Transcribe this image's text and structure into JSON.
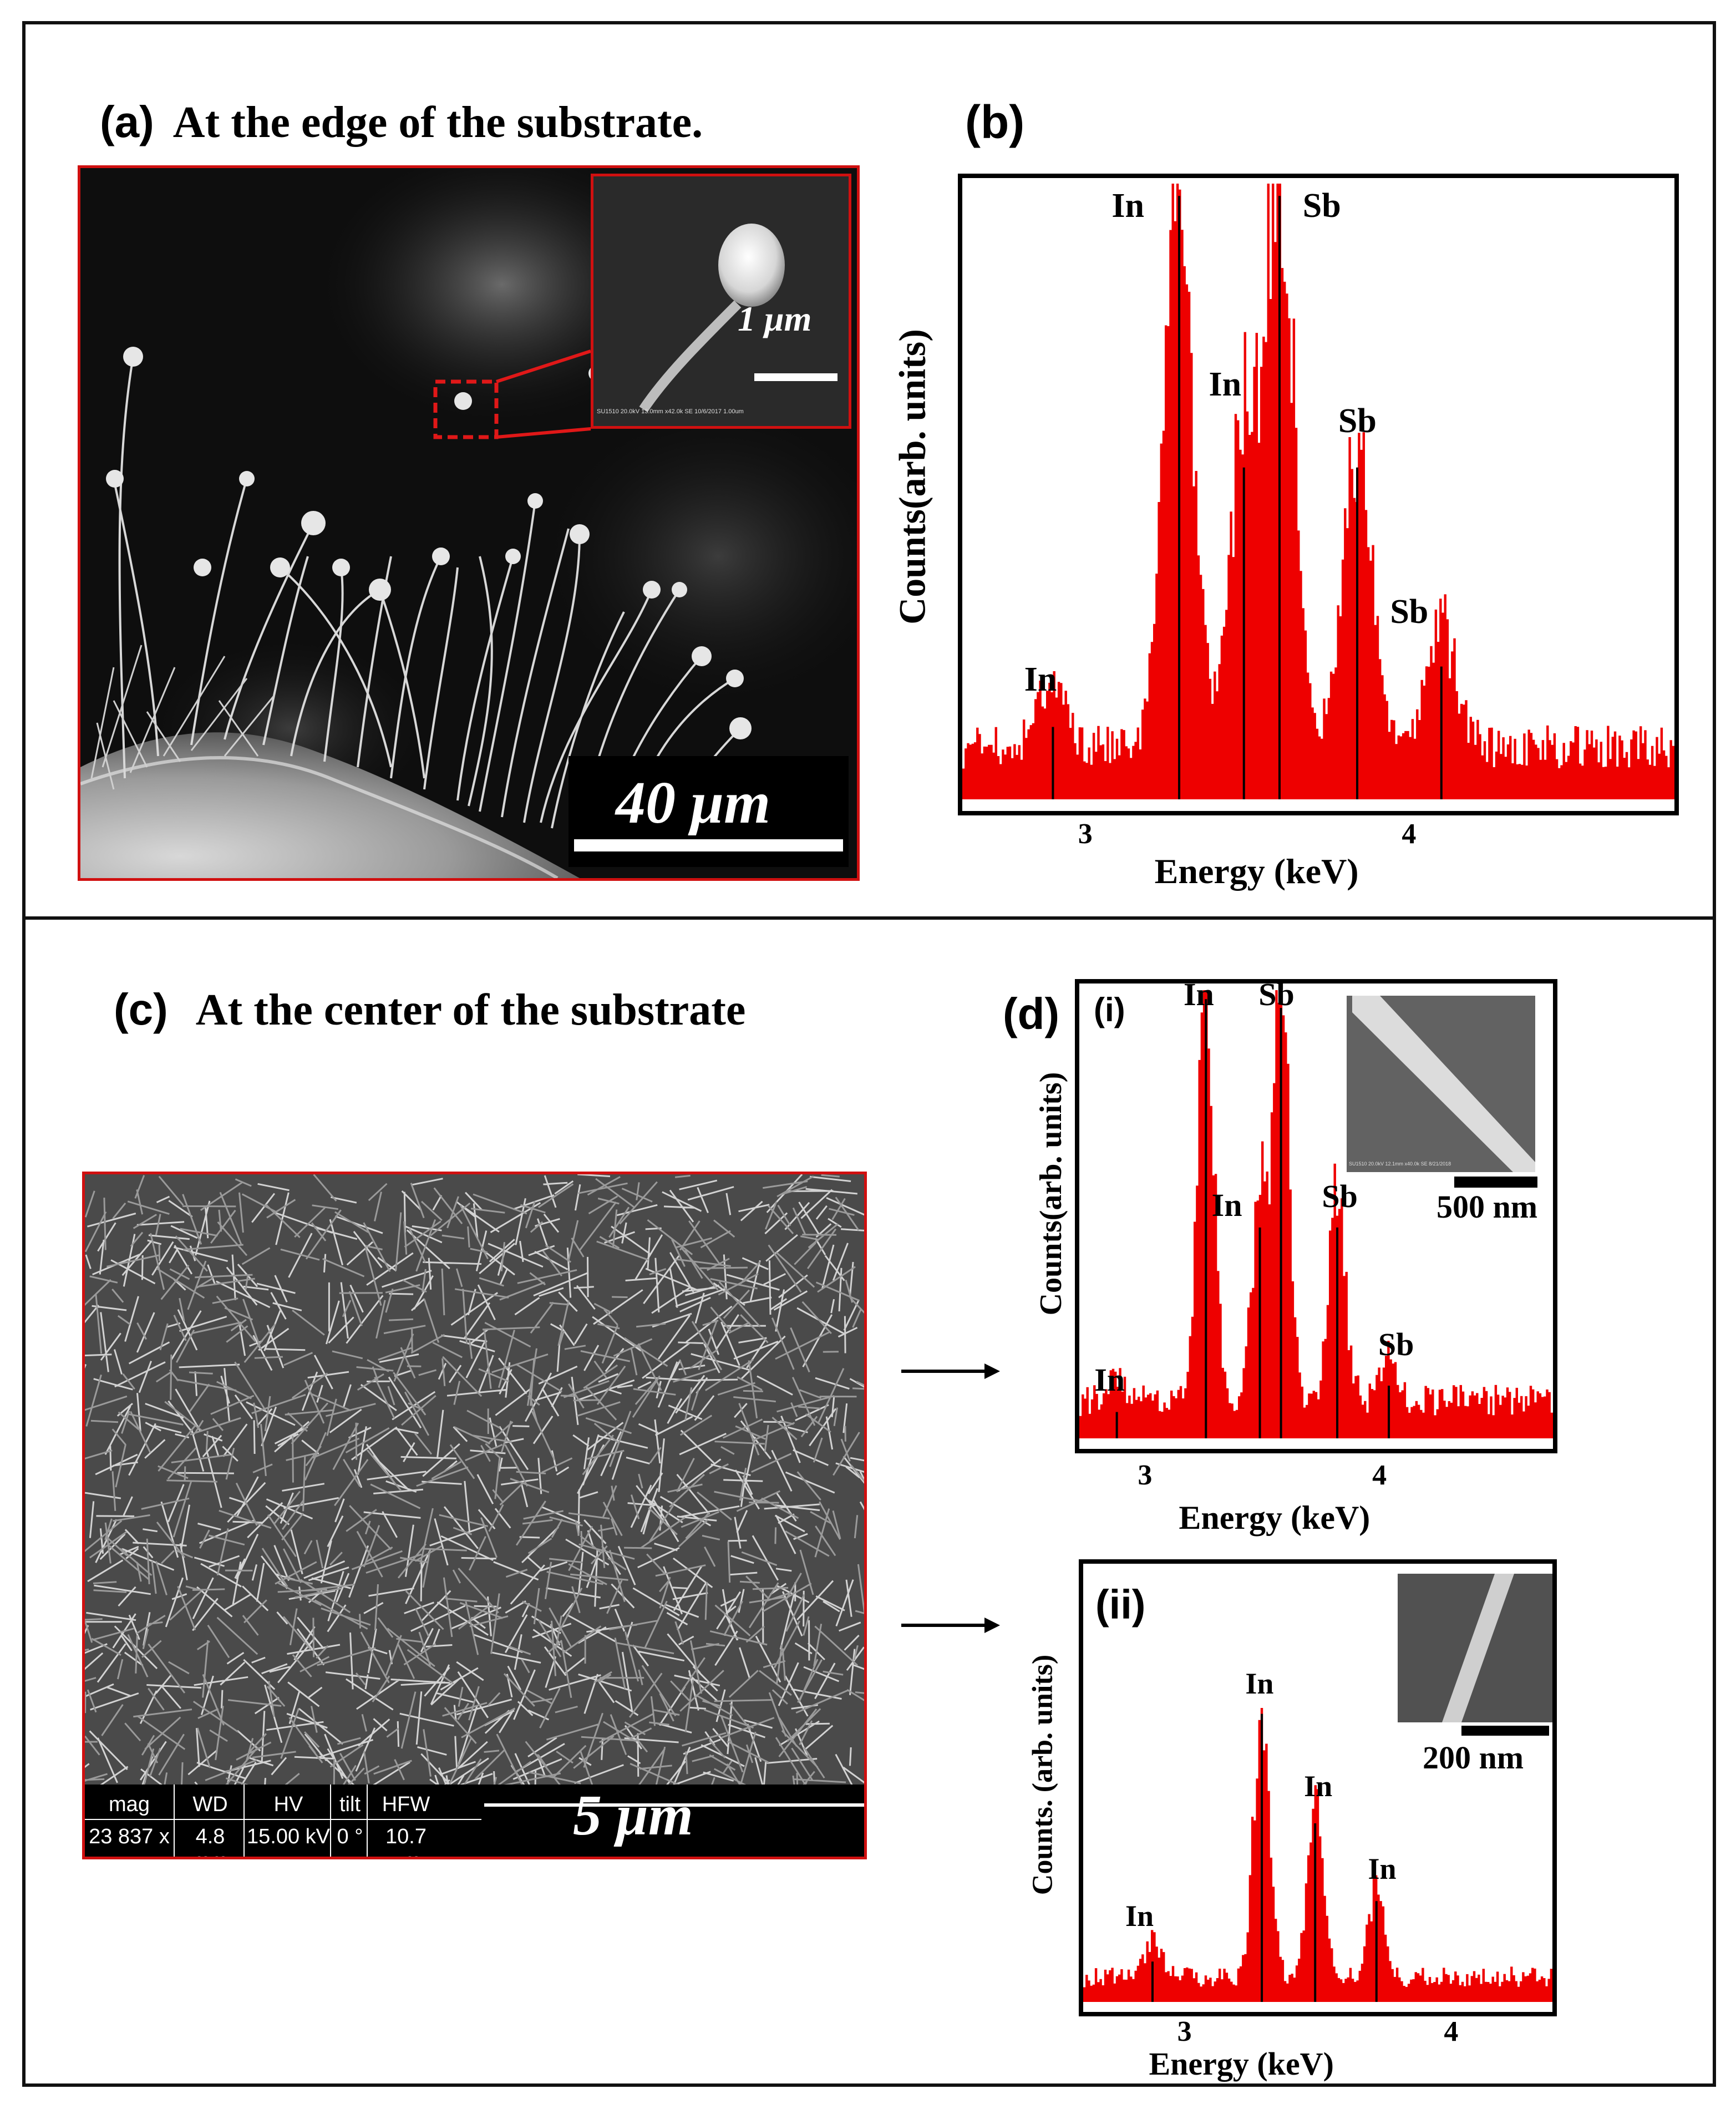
{
  "panel_a": {
    "letter": "(a)",
    "title": "At the edge of the substrate.",
    "scale_bar": "40 μm",
    "inset_scale_bar": "1 μm",
    "inset_caption": "SU1510 20.0kV 13.0mm x42.0k SE 10/6/2017                1.00um"
  },
  "panel_b": {
    "letter": "(b)"
  },
  "panel_c": {
    "letter": "(c)",
    "title": "At the center of the substrate",
    "info_headers": [
      "mag",
      "WD",
      "HV",
      "tilt",
      "HFW"
    ],
    "info_values": [
      "23 837 x",
      "4.8 mm",
      "15.00 kV",
      "0 °",
      "10.7 μm"
    ],
    "scale_bar": "5 μm"
  },
  "panel_d": {
    "letter": "(d)",
    "sub_i": "(i)",
    "sub_ii": "(ii)",
    "inset_i_scale": "500 nm",
    "inset_ii_scale": "200 nm",
    "inset_i_caption": "SU1510 20.0kV 12.1mm x40.0k SE 8/21/2018"
  },
  "chart_data": [
    {
      "id": "b",
      "type": "bar",
      "title": "",
      "xlabel": "Energy (keV)",
      "ylabel": "Counts(arb. units)",
      "xlim": [
        2.62,
        4.82
      ],
      "ylim": [
        0,
        100
      ],
      "xticks": [
        "3",
        "4"
      ],
      "tick_values": [
        3,
        4
      ],
      "peaks": [
        {
          "label": "In",
          "energy": 3.29,
          "height": 100
        },
        {
          "label": "Sb",
          "energy": 3.6,
          "height": 100
        },
        {
          "label": "In",
          "energy": 3.49,
          "height": 55
        },
        {
          "label": "Sb",
          "energy": 3.84,
          "height": 55
        },
        {
          "label": "Sb",
          "energy": 4.1,
          "height": 22
        },
        {
          "label": "In",
          "energy": 2.9,
          "height": 12
        }
      ],
      "peak_labels": [
        {
          "text": "In",
          "energy": 3.14,
          "level": 94
        },
        {
          "text": "Sb",
          "energy": 3.73,
          "level": 94
        },
        {
          "text": "In",
          "energy": 3.44,
          "level": 65
        },
        {
          "text": "Sb",
          "energy": 3.84,
          "level": 59
        },
        {
          "text": "Sb",
          "energy": 4.0,
          "level": 28
        },
        {
          "text": "In",
          "energy": 2.87,
          "level": 17
        }
      ]
    },
    {
      "id": "d-i",
      "type": "bar",
      "title": "",
      "xlabel": "Energy (keV)",
      "ylabel": "Counts(arb. units)",
      "xlim": [
        2.72,
        4.74
      ],
      "ylim": [
        0,
        100
      ],
      "xticks": [
        "3",
        "4"
      ],
      "tick_values": [
        3,
        4
      ],
      "peaks": [
        {
          "label": "In",
          "energy": 3.26,
          "height": 100
        },
        {
          "label": "Sb",
          "energy": 3.58,
          "height": 98
        },
        {
          "label": "In",
          "energy": 3.49,
          "height": 48
        },
        {
          "label": "Sb",
          "energy": 3.82,
          "height": 48
        },
        {
          "label": "Sb",
          "energy": 4.04,
          "height": 12
        },
        {
          "label": "In",
          "energy": 2.88,
          "height": 6
        }
      ],
      "peak_labels": [
        {
          "text": "In",
          "energy": 3.24,
          "level": 96
        },
        {
          "text": "Sb",
          "energy": 3.56,
          "level": 96
        },
        {
          "text": "In",
          "energy": 3.36,
          "level": 49
        },
        {
          "text": "Sb",
          "energy": 3.83,
          "level": 51
        },
        {
          "text": "Sb",
          "energy": 4.07,
          "level": 18
        },
        {
          "text": "In",
          "energy": 2.86,
          "level": 10
        }
      ]
    },
    {
      "id": "d-ii",
      "type": "bar",
      "title": "",
      "xlabel": "Energy (keV)",
      "ylabel": "Counts. (arb. units)",
      "xlim": [
        2.62,
        4.38
      ],
      "ylim": [
        0,
        100
      ],
      "xticks": [
        "3",
        "4"
      ],
      "tick_values": [
        3,
        4
      ],
      "peaks": [
        {
          "label": "In",
          "energy": 3.29,
          "height": 100
        },
        {
          "label": "In",
          "energy": 3.49,
          "height": 62
        },
        {
          "label": "In",
          "energy": 3.72,
          "height": 35
        },
        {
          "label": "In",
          "energy": 2.88,
          "height": 14
        }
      ],
      "peak_labels": [
        {
          "text": "In",
          "energy": 3.29,
          "level": 104
        },
        {
          "text": "In",
          "energy": 3.51,
          "level": 69
        },
        {
          "text": "In",
          "energy": 3.75,
          "level": 41
        },
        {
          "text": "In",
          "energy": 2.84,
          "level": 25
        }
      ]
    }
  ]
}
